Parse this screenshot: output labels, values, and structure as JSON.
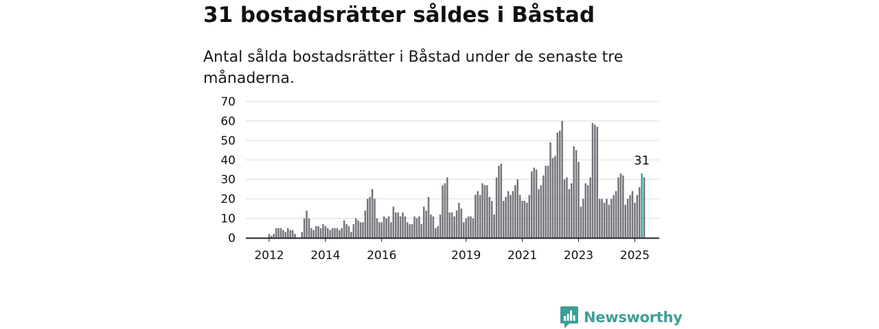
{
  "title": "31 bostadsrätter såldes i Båstad",
  "subtitle": "Antal sålda bostadsrätter i Båstad under de senaste tre månaderna.",
  "brand": {
    "name": "Newsworthy",
    "color": "#3f9e97"
  },
  "colors": {
    "bar": "#74737a",
    "highlight": "#23a8a0",
    "grid": "#d9d9d9",
    "axis": "#222222",
    "text": "#111111"
  },
  "chart_data": {
    "type": "bar",
    "title": "31 bostadsrätter såldes i Båstad",
    "subtitle": "Antal sålda bostadsrätter i Båstad under de senaste tre månaderna.",
    "xlabel": "",
    "ylabel": "",
    "ylim": [
      0,
      70
    ],
    "yticks": [
      0,
      10,
      20,
      30,
      40,
      50,
      60,
      70
    ],
    "xticks": [
      {
        "label": "2012",
        "index": 9
      },
      {
        "label": "2014",
        "index": 33
      },
      {
        "label": "2016",
        "index": 57
      },
      {
        "label": "2019",
        "index": 93
      },
      {
        "label": "2021",
        "index": 117
      },
      {
        "label": "2023",
        "index": 141
      },
      {
        "label": "2025",
        "index": 165
      }
    ],
    "grid": true,
    "legend": "none",
    "highlight_index": 168,
    "highlight_label": "31",
    "values": [
      0,
      0,
      0,
      0,
      0,
      0,
      0,
      0,
      0,
      2,
      1,
      2,
      5,
      5,
      5,
      4,
      3,
      5,
      4,
      4,
      2,
      0,
      0,
      3,
      10,
      14,
      10,
      5,
      4,
      6,
      6,
      5,
      7,
      6,
      5,
      4,
      5,
      5,
      5,
      4,
      5,
      9,
      7,
      6,
      3,
      7,
      10,
      9,
      8,
      8,
      14,
      20,
      21,
      25,
      20,
      10,
      8,
      8,
      11,
      10,
      11,
      8,
      16,
      13,
      13,
      11,
      13,
      11,
      8,
      7,
      7,
      11,
      10,
      11,
      7,
      16,
      14,
      21,
      12,
      11,
      5,
      6,
      12,
      27,
      28,
      31,
      13,
      13,
      11,
      14,
      18,
      15,
      8,
      10,
      11,
      11,
      10,
      22,
      24,
      22,
      28,
      27,
      27,
      21,
      19,
      12,
      31,
      37,
      38,
      19,
      21,
      24,
      22,
      24,
      27,
      30,
      22,
      19,
      19,
      18,
      22,
      34,
      36,
      35,
      25,
      27,
      32,
      37,
      37,
      49,
      41,
      42,
      54,
      55,
      60,
      30,
      31,
      25,
      28,
      47,
      45,
      39,
      16,
      20,
      28,
      27,
      31,
      59,
      58,
      57,
      20,
      20,
      18,
      20,
      17,
      20,
      22,
      24,
      31,
      33,
      32,
      17,
      20,
      22,
      24,
      18,
      22,
      26,
      33,
      31
    ]
  }
}
